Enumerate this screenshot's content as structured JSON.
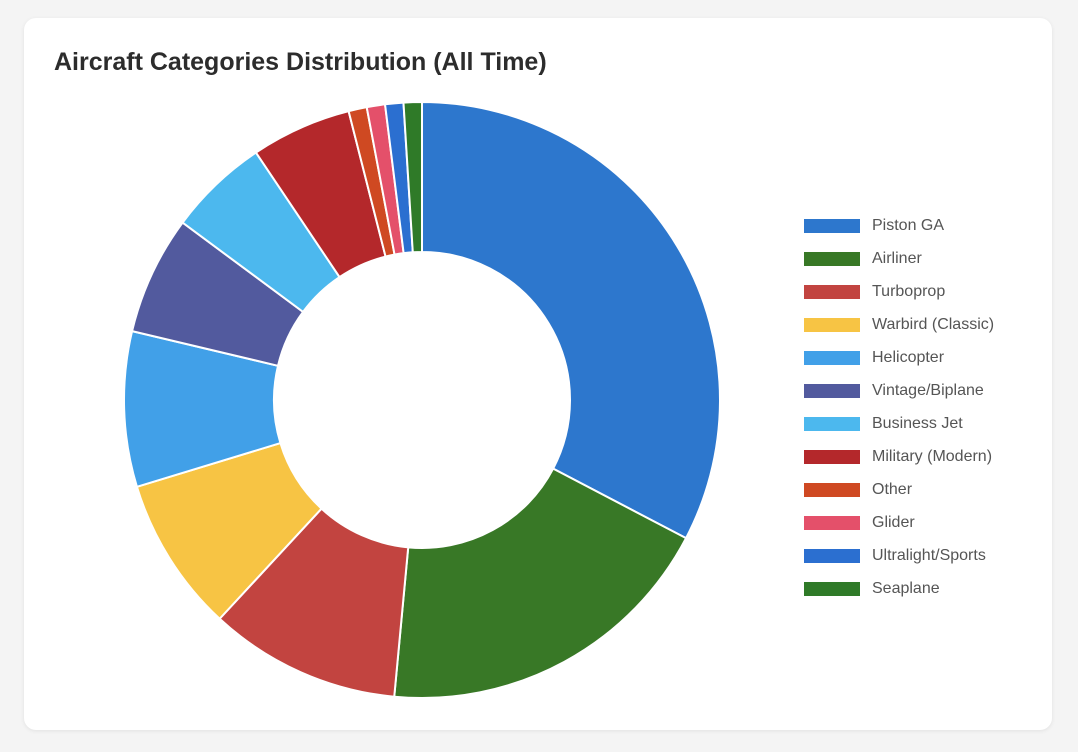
{
  "chart_data": {
    "type": "pie",
    "variant": "donut",
    "title": "Aircraft Categories Distribution (All Time)",
    "legend_position": "right",
    "categories": [
      "Piston GA",
      "Airliner",
      "Turboprop",
      "Warbird (Classic)",
      "Helicopter",
      "Vintage/Biplane",
      "Business Jet",
      "Military (Modern)",
      "Other",
      "Glider",
      "Ultralight/Sports",
      "Seaplane"
    ],
    "values": [
      33,
      19,
      10.5,
      8.5,
      8.5,
      6.5,
      5.5,
      5.5,
      1,
      1,
      1,
      1
    ],
    "colors": [
      "#2d77cd",
      "#387826",
      "#c24440",
      "#f7c444",
      "#41a0e8",
      "#525a9e",
      "#4cb8ee",
      "#b4282b",
      "#cf4922",
      "#e4506a",
      "#2b6fd0",
      "#2f7a28"
    ]
  }
}
